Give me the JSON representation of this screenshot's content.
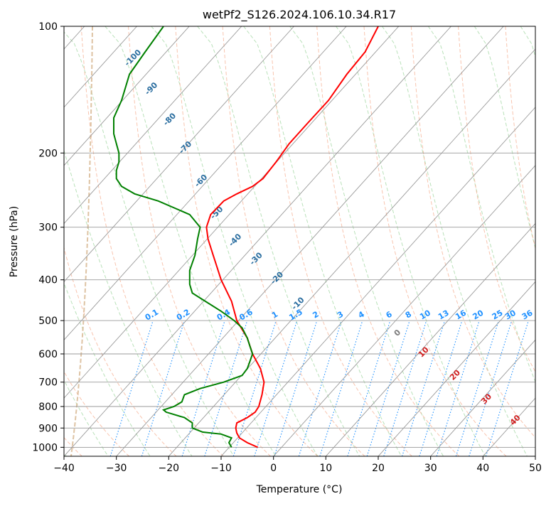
{
  "chart_data": {
    "type": "line",
    "title": "wetPf2_S126.2024.106.10.34.R17",
    "xlabel": "Temperature (°C)",
    "ylabel": "Pressure (hPa)",
    "xlim": [
      -40,
      50
    ],
    "ylim": [
      1050,
      100
    ],
    "y_scale": "log",
    "grid": true,
    "x_ticks": [
      -40,
      -30,
      -20,
      -10,
      0,
      10,
      20,
      30,
      40,
      50
    ],
    "x_tick_labels": [
      "−40",
      "−30",
      "−20",
      "−10",
      "0",
      "10",
      "20",
      "30",
      "40",
      "50"
    ],
    "y_ticks": [
      100,
      200,
      300,
      400,
      500,
      600,
      700,
      800,
      900,
      1000
    ],
    "y_tick_labels": [
      "100",
      "200",
      "300",
      "400",
      "500",
      "600",
      "700",
      "800",
      "900",
      "1000"
    ],
    "series": [
      {
        "color": "#ff0000",
        "points": [
          [
            1000,
            -3.0
          ],
          [
            975,
            -5.0
          ],
          [
            950,
            -6.5
          ],
          [
            925,
            -7.0
          ],
          [
            900,
            -7.2
          ],
          [
            875,
            -7.0
          ],
          [
            850,
            -5.0
          ],
          [
            825,
            -3.5
          ],
          [
            800,
            -2.8
          ],
          [
            750,
            -2.2
          ],
          [
            700,
            -1.8
          ],
          [
            650,
            -2.5
          ],
          [
            600,
            -4.0
          ],
          [
            550,
            -5.0
          ],
          [
            500,
            -7.0
          ],
          [
            450,
            -8.0
          ],
          [
            400,
            -10.0
          ],
          [
            350,
            -11.5
          ],
          [
            320,
            -12.5
          ],
          [
            300,
            -12.8
          ],
          [
            280,
            -12.0
          ],
          [
            260,
            -9.5
          ],
          [
            250,
            -7.0
          ],
          [
            240,
            -4.0
          ],
          [
            230,
            -2.0
          ],
          [
            210,
            0.5
          ],
          [
            190,
            3.0
          ],
          [
            170,
            6.5
          ],
          [
            150,
            10.5
          ],
          [
            130,
            14.0
          ],
          [
            115,
            17.5
          ],
          [
            100,
            20.0
          ]
        ]
      },
      {
        "color": "#008000",
        "points": [
          [
            1000,
            -8.0
          ],
          [
            975,
            -8.5
          ],
          [
            950,
            -8.0
          ],
          [
            930,
            -10.0
          ],
          [
            920,
            -13.5
          ],
          [
            900,
            -15.5
          ],
          [
            875,
            -15.5
          ],
          [
            850,
            -17.0
          ],
          [
            825,
            -20.5
          ],
          [
            815,
            -21.0
          ],
          [
            800,
            -19.0
          ],
          [
            780,
            -17.5
          ],
          [
            750,
            -17.0
          ],
          [
            725,
            -14.0
          ],
          [
            700,
            -9.5
          ],
          [
            675,
            -6.0
          ],
          [
            650,
            -5.0
          ],
          [
            625,
            -4.5
          ],
          [
            600,
            -4.0
          ],
          [
            575,
            -4.5
          ],
          [
            550,
            -5.0
          ],
          [
            520,
            -6.0
          ],
          [
            500,
            -7.5
          ],
          [
            475,
            -10.0
          ],
          [
            450,
            -13.0
          ],
          [
            430,
            -15.5
          ],
          [
            410,
            -16.0
          ],
          [
            380,
            -16.0
          ],
          [
            350,
            -15.0
          ],
          [
            320,
            -14.5
          ],
          [
            300,
            -14.0
          ],
          [
            280,
            -16.0
          ],
          [
            260,
            -22.0
          ],
          [
            250,
            -26.5
          ],
          [
            240,
            -29.0
          ],
          [
            230,
            -30.0
          ],
          [
            220,
            -30.0
          ],
          [
            210,
            -29.5
          ],
          [
            200,
            -29.5
          ],
          [
            190,
            -30.0
          ],
          [
            180,
            -30.5
          ],
          [
            165,
            -30.5
          ],
          [
            150,
            -29.0
          ],
          [
            130,
            -27.5
          ],
          [
            115,
            -24.5
          ],
          [
            100,
            -21.0
          ]
        ]
      }
    ],
    "annotations": {
      "mixing_ratio": [
        {
          "label": "0.1",
          "x": -23.0
        },
        {
          "label": "0.2",
          "x": -17.0
        },
        {
          "label": "0.4",
          "x": -9.3
        },
        {
          "label": "0.6",
          "x": -5.0
        },
        {
          "label": "1",
          "x": 0.5
        },
        {
          "label": "1.5",
          "x": 4.5
        },
        {
          "label": "2",
          "x": 8.3
        },
        {
          "label": "3",
          "x": 13.0
        },
        {
          "label": "4",
          "x": 17.0
        },
        {
          "label": "6",
          "x": 22.3
        },
        {
          "label": "8",
          "x": 26.0
        },
        {
          "label": "10",
          "x": 29.2
        },
        {
          "label": "13",
          "x": 32.7
        },
        {
          "label": "16",
          "x": 36.0
        },
        {
          "label": "20",
          "x": 39.3
        },
        {
          "label": "25",
          "x": 43.0
        },
        {
          "label": "30",
          "x": 45.5
        },
        {
          "label": "36",
          "x": 48.7
        }
      ],
      "dry_adiabats": [
        {
          "label": "-100",
          "x": -26.5,
          "p": 120
        },
        {
          "label": "-90",
          "x": -23.0,
          "p": 142
        },
        {
          "label": "-80",
          "x": -19.5,
          "p": 168
        },
        {
          "label": "-70",
          "x": -16.5,
          "p": 196
        },
        {
          "label": "-60",
          "x": -13.5,
          "p": 235
        },
        {
          "label": "-50",
          "x": -10.5,
          "p": 280
        },
        {
          "label": "-40",
          "x": -7.0,
          "p": 325
        },
        {
          "label": "-30",
          "x": -3.0,
          "p": 360
        },
        {
          "label": "-20",
          "x": 1.0,
          "p": 400
        },
        {
          "label": "-10",
          "x": 5.0,
          "p": 460
        }
      ],
      "moist_adiabats": [
        {
          "label": "0",
          "x": 24.0,
          "p": 540
        },
        {
          "label": "10",
          "x": 29.0,
          "p": 600
        },
        {
          "label": "20",
          "x": 35.0,
          "p": 680
        },
        {
          "label": "30",
          "x": 41.0,
          "p": 775
        },
        {
          "label": "40",
          "x": 46.5,
          "p": 870
        }
      ]
    }
  }
}
